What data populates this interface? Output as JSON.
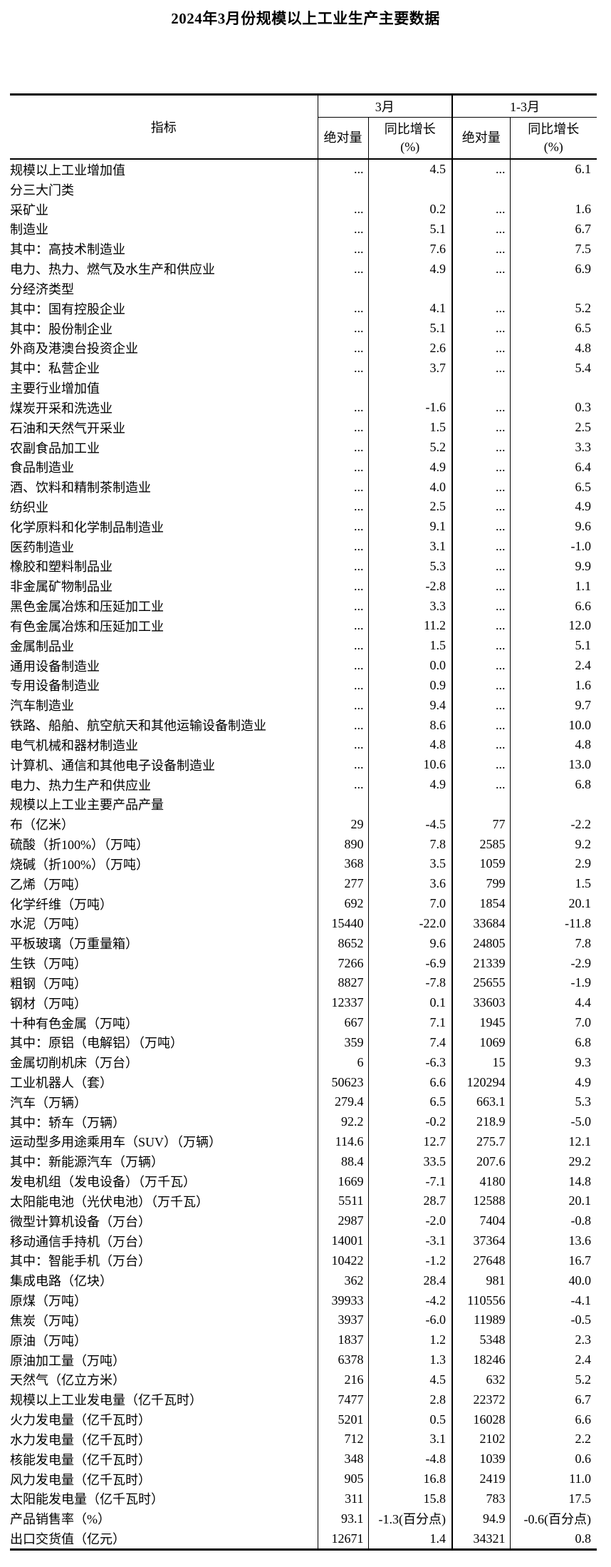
{
  "title": "2024年3月份规模以上工业生产主要数据",
  "table": {
    "columns": {
      "indicator": "指标",
      "month_group": "3月",
      "quarter_group": "1-3月",
      "abs": "绝对量",
      "yoy_line1": "同比增长",
      "yoy_line2": "(%)"
    },
    "rows": [
      {
        "label": "规模以上工业增加值",
        "indent": 0,
        "m_abs": "...",
        "m_yoy": "4.5",
        "q_abs": "...",
        "q_yoy": "6.1"
      },
      {
        "label": "分三大门类",
        "indent": 0,
        "m_abs": "",
        "m_yoy": "",
        "q_abs": "",
        "q_yoy": ""
      },
      {
        "label": "采矿业",
        "indent": 1,
        "m_abs": "...",
        "m_yoy": "0.2",
        "q_abs": "...",
        "q_yoy": "1.6"
      },
      {
        "label": "制造业",
        "indent": 1,
        "m_abs": "...",
        "m_yoy": "5.1",
        "q_abs": "...",
        "q_yoy": "6.7"
      },
      {
        "label": "其中：高技术制造业",
        "indent": 2,
        "m_abs": "...",
        "m_yoy": "7.6",
        "q_abs": "...",
        "q_yoy": "7.5"
      },
      {
        "label": "电力、热力、燃气及水生产和供应业",
        "indent": 1,
        "m_abs": "...",
        "m_yoy": "4.9",
        "q_abs": "...",
        "q_yoy": "6.9"
      },
      {
        "label": "分经济类型",
        "indent": 0,
        "m_abs": "",
        "m_yoy": "",
        "q_abs": "",
        "q_yoy": ""
      },
      {
        "label": "其中：国有控股企业",
        "indent": 1,
        "m_abs": "...",
        "m_yoy": "4.1",
        "q_abs": "...",
        "q_yoy": "5.2"
      },
      {
        "label": "其中：股份制企业",
        "indent": 1,
        "m_abs": "...",
        "m_yoy": "5.1",
        "q_abs": "...",
        "q_yoy": "6.5"
      },
      {
        "label": "外商及港澳台投资企业",
        "indent": 3,
        "m_abs": "...",
        "m_yoy": "2.6",
        "q_abs": "...",
        "q_yoy": "4.8"
      },
      {
        "label": "其中：私营企业",
        "indent": 1,
        "m_abs": "...",
        "m_yoy": "3.7",
        "q_abs": "...",
        "q_yoy": "5.4"
      },
      {
        "label": "主要行业增加值",
        "indent": 0,
        "m_abs": "",
        "m_yoy": "",
        "q_abs": "",
        "q_yoy": ""
      },
      {
        "label": "煤炭开采和洗选业",
        "indent": 1,
        "m_abs": "...",
        "m_yoy": "-1.6",
        "q_abs": "...",
        "q_yoy": "0.3"
      },
      {
        "label": "石油和天然气开采业",
        "indent": 1,
        "m_abs": "...",
        "m_yoy": "1.5",
        "q_abs": "...",
        "q_yoy": "2.5"
      },
      {
        "label": "农副食品加工业",
        "indent": 1,
        "m_abs": "...",
        "m_yoy": "5.2",
        "q_abs": "...",
        "q_yoy": "3.3"
      },
      {
        "label": "食品制造业",
        "indent": 1,
        "m_abs": "...",
        "m_yoy": "4.9",
        "q_abs": "...",
        "q_yoy": "6.4"
      },
      {
        "label": "酒、饮料和精制茶制造业",
        "indent": 1,
        "m_abs": "...",
        "m_yoy": "4.0",
        "q_abs": "...",
        "q_yoy": "6.5"
      },
      {
        "label": "纺织业",
        "indent": 1,
        "m_abs": "...",
        "m_yoy": "2.5",
        "q_abs": "...",
        "q_yoy": "4.9"
      },
      {
        "label": "化学原料和化学制品制造业",
        "indent": 1,
        "m_abs": "...",
        "m_yoy": "9.1",
        "q_abs": "...",
        "q_yoy": "9.6"
      },
      {
        "label": "医药制造业",
        "indent": 1,
        "m_abs": "...",
        "m_yoy": "3.1",
        "q_abs": "...",
        "q_yoy": "-1.0"
      },
      {
        "label": "橡胶和塑料制品业",
        "indent": 1,
        "m_abs": "...",
        "m_yoy": "5.3",
        "q_abs": "...",
        "q_yoy": "9.9"
      },
      {
        "label": "非金属矿物制品业",
        "indent": 1,
        "m_abs": "...",
        "m_yoy": "-2.8",
        "q_abs": "...",
        "q_yoy": "1.1"
      },
      {
        "label": "黑色金属冶炼和压延加工业",
        "indent": 1,
        "m_abs": "...",
        "m_yoy": "3.3",
        "q_abs": "...",
        "q_yoy": "6.6"
      },
      {
        "label": "有色金属冶炼和压延加工业",
        "indent": 1,
        "m_abs": "...",
        "m_yoy": "11.2",
        "q_abs": "...",
        "q_yoy": "12.0"
      },
      {
        "label": "金属制品业",
        "indent": 1,
        "m_abs": "...",
        "m_yoy": "1.5",
        "q_abs": "...",
        "q_yoy": "5.1"
      },
      {
        "label": "通用设备制造业",
        "indent": 1,
        "m_abs": "...",
        "m_yoy": "0.0",
        "q_abs": "...",
        "q_yoy": "2.4"
      },
      {
        "label": "专用设备制造业",
        "indent": 1,
        "m_abs": "...",
        "m_yoy": "0.9",
        "q_abs": "...",
        "q_yoy": "1.6"
      },
      {
        "label": "汽车制造业",
        "indent": 1,
        "m_abs": "...",
        "m_yoy": "9.4",
        "q_abs": "...",
        "q_yoy": "9.7"
      },
      {
        "label": "铁路、船舶、航空航天和其他运输设备制造业",
        "indent": 1,
        "m_abs": "...",
        "m_yoy": "8.6",
        "q_abs": "...",
        "q_yoy": "10.0"
      },
      {
        "label": "电气机械和器材制造业",
        "indent": 1,
        "m_abs": "...",
        "m_yoy": "4.8",
        "q_abs": "...",
        "q_yoy": "4.8"
      },
      {
        "label": "计算机、通信和其他电子设备制造业",
        "indent": 1,
        "m_abs": "...",
        "m_yoy": "10.6",
        "q_abs": "...",
        "q_yoy": "13.0"
      },
      {
        "label": "电力、热力生产和供应业",
        "indent": 1,
        "m_abs": "...",
        "m_yoy": "4.9",
        "q_abs": "...",
        "q_yoy": "6.8"
      },
      {
        "label": "规模以上工业主要产品产量",
        "indent": 0,
        "m_abs": "",
        "m_yoy": "",
        "q_abs": "",
        "q_yoy": ""
      },
      {
        "label": "布（亿米）",
        "indent": 1,
        "m_abs": "29",
        "m_yoy": "-4.5",
        "q_abs": "77",
        "q_yoy": "-2.2"
      },
      {
        "label": "硫酸（折100%）（万吨）",
        "indent": 1,
        "m_abs": "890",
        "m_yoy": "7.8",
        "q_abs": "2585",
        "q_yoy": "9.2"
      },
      {
        "label": "烧碱（折100%）（万吨）",
        "indent": 1,
        "m_abs": "368",
        "m_yoy": "3.5",
        "q_abs": "1059",
        "q_yoy": "2.9"
      },
      {
        "label": "乙烯（万吨）",
        "indent": 1,
        "m_abs": "277",
        "m_yoy": "3.6",
        "q_abs": "799",
        "q_yoy": "1.5"
      },
      {
        "label": "化学纤维（万吨）",
        "indent": 1,
        "m_abs": "692",
        "m_yoy": "7.0",
        "q_abs": "1854",
        "q_yoy": "20.1"
      },
      {
        "label": "水泥（万吨）",
        "indent": 1,
        "m_abs": "15440",
        "m_yoy": "-22.0",
        "q_abs": "33684",
        "q_yoy": "-11.8"
      },
      {
        "label": "平板玻璃（万重量箱）",
        "indent": 1,
        "m_abs": "8652",
        "m_yoy": "9.6",
        "q_abs": "24805",
        "q_yoy": "7.8"
      },
      {
        "label": "生铁（万吨）",
        "indent": 1,
        "m_abs": "7266",
        "m_yoy": "-6.9",
        "q_abs": "21339",
        "q_yoy": "-2.9"
      },
      {
        "label": "粗钢（万吨）",
        "indent": 1,
        "m_abs": "8827",
        "m_yoy": "-7.8",
        "q_abs": "25655",
        "q_yoy": "-1.9"
      },
      {
        "label": "钢材（万吨）",
        "indent": 1,
        "m_abs": "12337",
        "m_yoy": "0.1",
        "q_abs": "33603",
        "q_yoy": "4.4"
      },
      {
        "label": "十种有色金属（万吨）",
        "indent": 1,
        "m_abs": "667",
        "m_yoy": "7.1",
        "q_abs": "1945",
        "q_yoy": "7.0"
      },
      {
        "label": "其中：原铝（电解铝）（万吨）",
        "indent": 2,
        "m_abs": "359",
        "m_yoy": "7.4",
        "q_abs": "1069",
        "q_yoy": "6.8"
      },
      {
        "label": "金属切削机床（万台）",
        "indent": 1,
        "m_abs": "6",
        "m_yoy": "-6.3",
        "q_abs": "15",
        "q_yoy": "9.3"
      },
      {
        "label": "工业机器人（套）",
        "indent": 1,
        "m_abs": "50623",
        "m_yoy": "6.6",
        "q_abs": "120294",
        "q_yoy": "4.9"
      },
      {
        "label": "汽车（万辆）",
        "indent": 1,
        "m_abs": "279.4",
        "m_yoy": "6.5",
        "q_abs": "663.1",
        "q_yoy": "5.3"
      },
      {
        "label": "其中：轿车（万辆）",
        "indent": 2,
        "m_abs": "92.2",
        "m_yoy": "-0.2",
        "q_abs": "218.9",
        "q_yoy": "-5.0"
      },
      {
        "label": "运动型多用途乘用车（SUV）（万辆）",
        "indent": 4,
        "m_abs": "114.6",
        "m_yoy": "12.7",
        "q_abs": "275.7",
        "q_yoy": "12.1"
      },
      {
        "label": "其中：新能源汽车（万辆）",
        "indent": 2,
        "m_abs": "88.4",
        "m_yoy": "33.5",
        "q_abs": "207.6",
        "q_yoy": "29.2"
      },
      {
        "label": "发电机组（发电设备）（万千瓦）",
        "indent": 1,
        "m_abs": "1669",
        "m_yoy": "-7.1",
        "q_abs": "4180",
        "q_yoy": "14.8"
      },
      {
        "label": "太阳能电池（光伏电池）（万千瓦）",
        "indent": 1,
        "m_abs": "5511",
        "m_yoy": "28.7",
        "q_abs": "12588",
        "q_yoy": "20.1"
      },
      {
        "label": "微型计算机设备（万台）",
        "indent": 1,
        "m_abs": "2987",
        "m_yoy": "-2.0",
        "q_abs": "7404",
        "q_yoy": "-0.8"
      },
      {
        "label": "移动通信手持机（万台）",
        "indent": 1,
        "m_abs": "14001",
        "m_yoy": "-3.1",
        "q_abs": "37364",
        "q_yoy": "13.6"
      },
      {
        "label": "其中：智能手机（万台）",
        "indent": 2,
        "m_abs": "10422",
        "m_yoy": "-1.2",
        "q_abs": "27648",
        "q_yoy": "16.7"
      },
      {
        "label": "集成电路（亿块）",
        "indent": 1,
        "m_abs": "362",
        "m_yoy": "28.4",
        "q_abs": "981",
        "q_yoy": "40.0"
      },
      {
        "label": "原煤（万吨）",
        "indent": 1,
        "m_abs": "39933",
        "m_yoy": "-4.2",
        "q_abs": "110556",
        "q_yoy": "-4.1"
      },
      {
        "label": "焦炭（万吨）",
        "indent": 1,
        "m_abs": "3937",
        "m_yoy": "-6.0",
        "q_abs": "11989",
        "q_yoy": "-0.5"
      },
      {
        "label": "原油（万吨）",
        "indent": 1,
        "m_abs": "1837",
        "m_yoy": "1.2",
        "q_abs": "5348",
        "q_yoy": "2.3"
      },
      {
        "label": "原油加工量（万吨）",
        "indent": 1,
        "m_abs": "6378",
        "m_yoy": "1.3",
        "q_abs": "18246",
        "q_yoy": "2.4"
      },
      {
        "label": "天然气（亿立方米）",
        "indent": 1,
        "m_abs": "216",
        "m_yoy": "4.5",
        "q_abs": "632",
        "q_yoy": "5.2"
      },
      {
        "label": "规模以上工业发电量（亿千瓦时）",
        "indent": 1,
        "m_abs": "7477",
        "m_yoy": "2.8",
        "q_abs": "22372",
        "q_yoy": "6.7"
      },
      {
        "label": "火力发电量（亿千瓦时）",
        "indent": 2,
        "m_abs": "5201",
        "m_yoy": "0.5",
        "q_abs": "16028",
        "q_yoy": "6.6"
      },
      {
        "label": "水力发电量（亿千瓦时）",
        "indent": 2,
        "m_abs": "712",
        "m_yoy": "3.1",
        "q_abs": "2102",
        "q_yoy": "2.2"
      },
      {
        "label": "核能发电量（亿千瓦时）",
        "indent": 2,
        "m_abs": "348",
        "m_yoy": "-4.8",
        "q_abs": "1039",
        "q_yoy": "0.6"
      },
      {
        "label": "风力发电量（亿千瓦时）",
        "indent": 2,
        "m_abs": "905",
        "m_yoy": "16.8",
        "q_abs": "2419",
        "q_yoy": "11.0"
      },
      {
        "label": "太阳能发电量（亿千瓦时）",
        "indent": 2,
        "m_abs": "311",
        "m_yoy": "15.8",
        "q_abs": "783",
        "q_yoy": "17.5"
      },
      {
        "label": "产品销售率（%）",
        "indent": 1,
        "m_abs": "93.1",
        "m_yoy": "-1.3(百分点)",
        "q_abs": "94.9",
        "q_yoy": "-0.6(百分点)"
      },
      {
        "label": "出口交货值（亿元）",
        "indent": 1,
        "m_abs": "12671",
        "m_yoy": "1.4",
        "q_abs": "34321",
        "q_yoy": "0.8"
      }
    ]
  }
}
